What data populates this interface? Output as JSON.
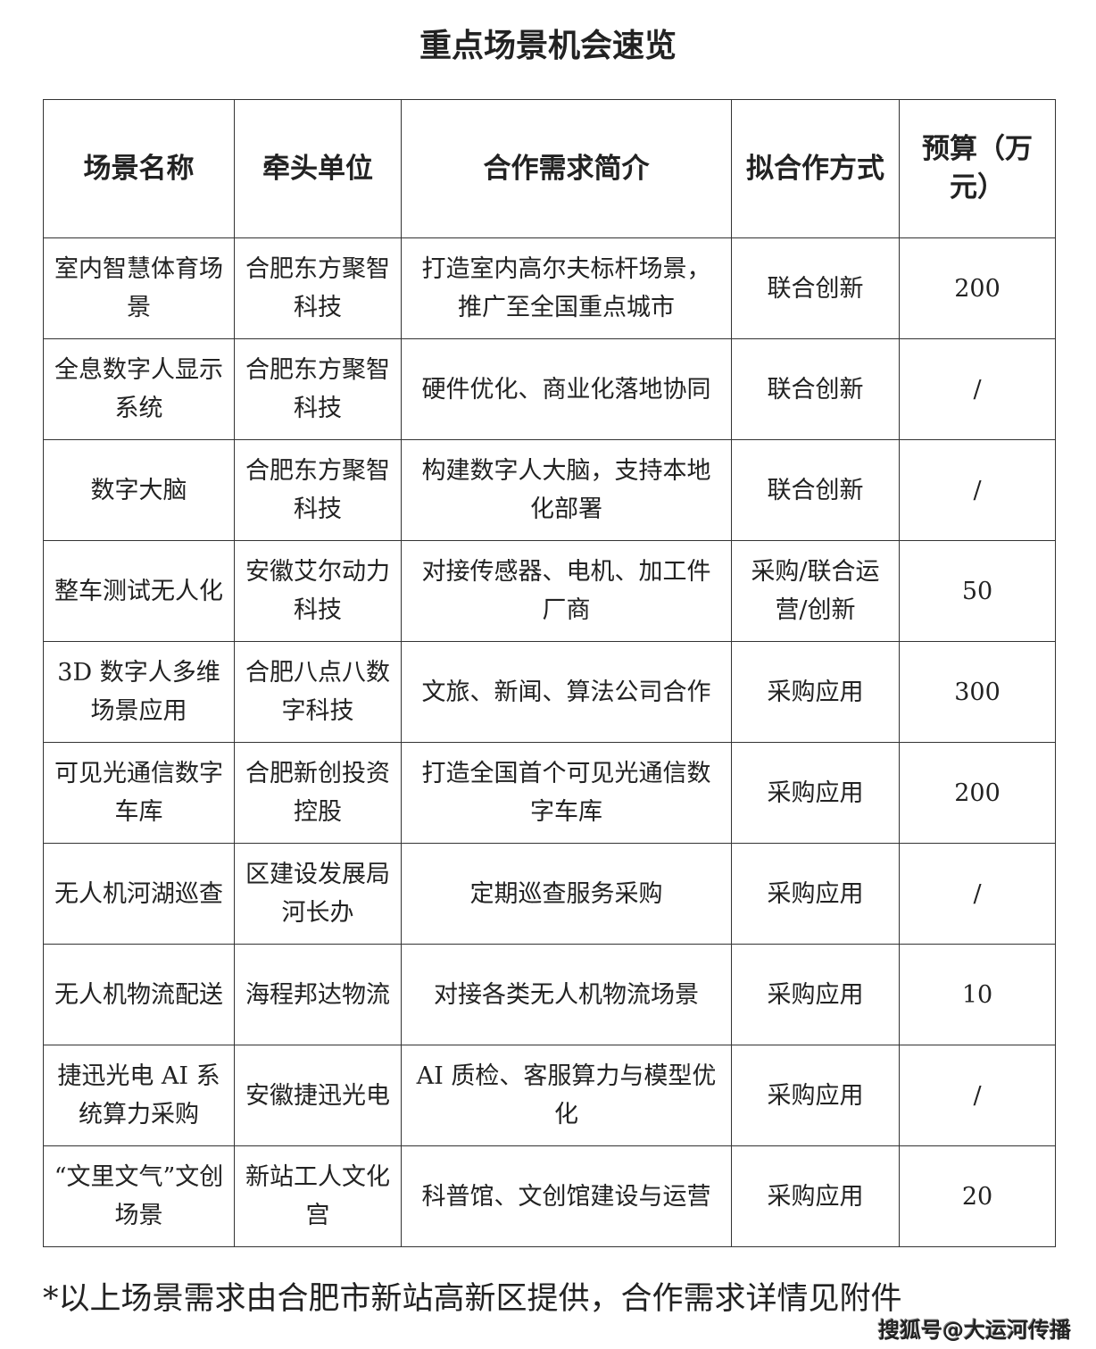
{
  "title": "重点场景机会速览",
  "headers": [
    "场景名称",
    "牵头单位",
    "合作需求简介",
    "拟合作方式",
    "预算（万元）"
  ],
  "rows": [
    [
      "室内智慧体育场景",
      "合肥东方聚智科技",
      "打造室内高尔夫标杆场景，推广至全国重点城市",
      "联合创新",
      "200"
    ],
    [
      "全息数字人显示系统",
      "合肥东方聚智科技",
      "硬件优化、商业化落地协同",
      "联合创新",
      "/"
    ],
    [
      "数字大脑",
      "合肥东方聚智科技",
      "构建数字人大脑，支持本地化部署",
      "联合创新",
      "/"
    ],
    [
      "整车测试无人化",
      "安徽艾尔动力科技",
      "对接传感器、电机、加工件厂商",
      "采购/联合运营/创新",
      "50"
    ],
    [
      "3D 数字人多维场景应用",
      "合肥八点八数字科技",
      "文旅、新闻、算法公司合作",
      "采购应用",
      "300"
    ],
    [
      "可见光通信数字车库",
      "合肥新创投资控股",
      "打造全国首个可见光通信数字车库",
      "采购应用",
      "200"
    ],
    [
      "无人机河湖巡查",
      "区建设发展局河长办",
      "定期巡查服务采购",
      "采购应用",
      "/"
    ],
    [
      "无人机物流配送",
      "海程邦达物流",
      "对接各类无人机物流场景",
      "采购应用",
      "10"
    ],
    [
      "捷迅光电 AI 系统算力采购",
      "安徽捷迅光电",
      "AI 质检、客服算力与模型优化",
      "采购应用",
      "/"
    ],
    [
      "“文里文气”文创场景",
      "新站工人文化宫",
      "科普馆、文创馆建设与运营",
      "采购应用",
      "20"
    ]
  ],
  "note": "*以上场景需求由合肥市新站高新区提供，合作需求详情见附件",
  "watermark": "搜狐号@大运河传播"
}
